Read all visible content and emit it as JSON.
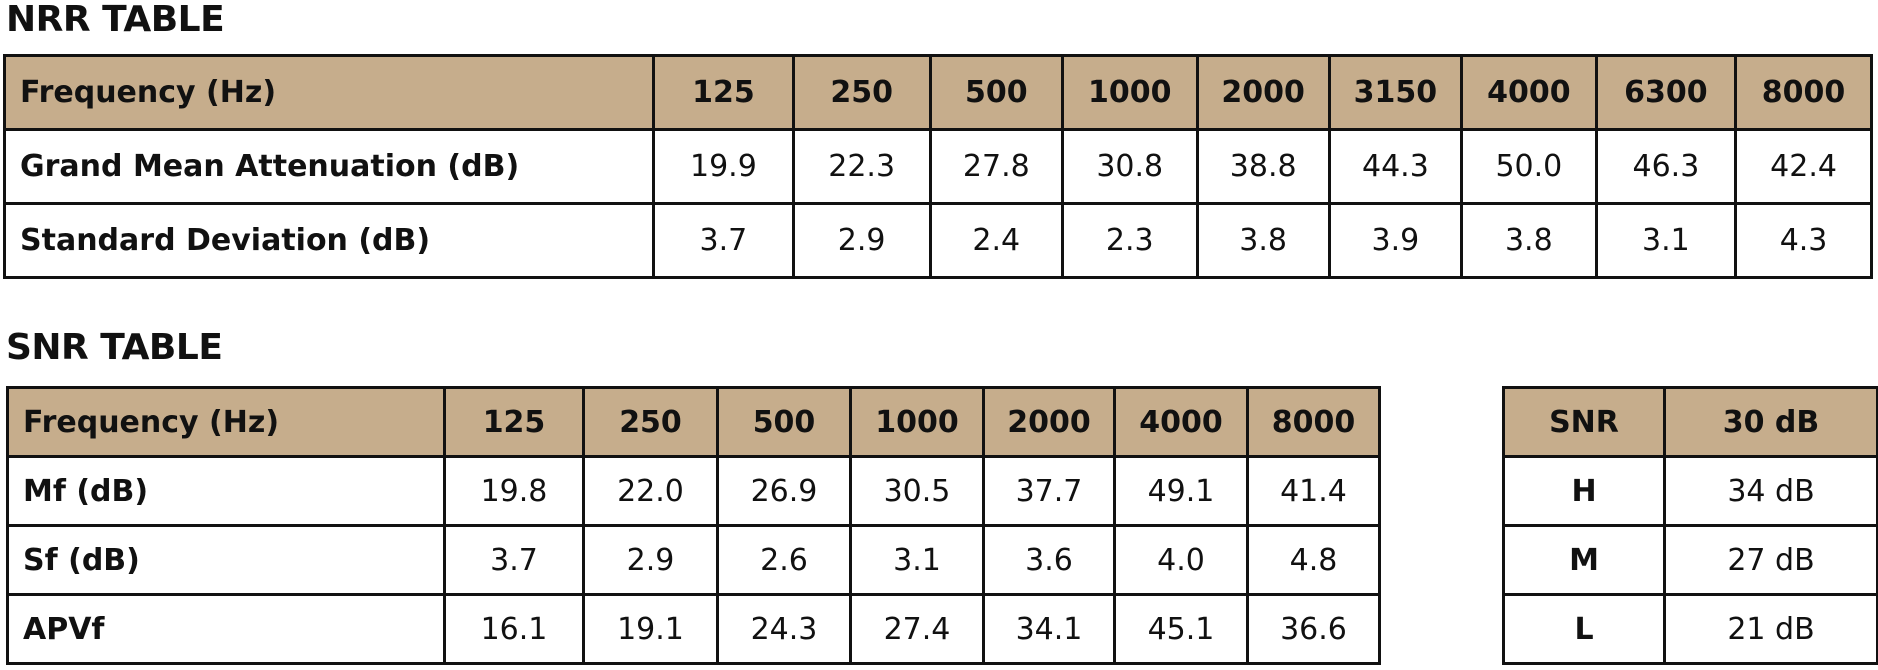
{
  "nrr": {
    "title": "NRR TABLE",
    "columns": [
      "Frequency (Hz)",
      "125",
      "250",
      "500",
      "1000",
      "2000",
      "3150",
      "4000",
      "6300",
      "8000"
    ],
    "rows": [
      {
        "label": "Grand Mean Attenuation (dB)",
        "values": [
          "19.9",
          "22.3",
          "27.8",
          "30.8",
          "38.8",
          "44.3",
          "50.0",
          "46.3",
          "42.4"
        ]
      },
      {
        "label": "Standard Deviation (dB)",
        "values": [
          "3.7",
          "2.9",
          "2.4",
          "2.3",
          "3.8",
          "3.9",
          "3.8",
          "3.1",
          "4.3"
        ]
      }
    ]
  },
  "snr": {
    "title": "SNR TABLE",
    "columns": [
      "Frequency (Hz)",
      "125",
      "250",
      "500",
      "1000",
      "2000",
      "4000",
      "8000"
    ],
    "rows": [
      {
        "label": "Mf (dB)",
        "values": [
          "19.8",
          "22.0",
          "26.9",
          "30.5",
          "37.7",
          "49.1",
          "41.4"
        ]
      },
      {
        "label": "Sf (dB)",
        "values": [
          "3.7",
          "2.9",
          "2.6",
          "3.1",
          "3.6",
          "4.0",
          "4.8"
        ]
      },
      {
        "label": "APVf",
        "values": [
          "16.1",
          "19.1",
          "24.3",
          "27.4",
          "34.1",
          "45.1",
          "36.6"
        ]
      }
    ]
  },
  "snr_rating": {
    "header": [
      "SNR",
      "30 dB"
    ],
    "rows": [
      {
        "label": "H",
        "value": "34 dB"
      },
      {
        "label": "M",
        "value": "27 dB"
      },
      {
        "label": "L",
        "value": "21 dB"
      }
    ]
  },
  "colors": {
    "header_background": "#c6ad8c",
    "border": "#111111",
    "text": "#111111"
  }
}
